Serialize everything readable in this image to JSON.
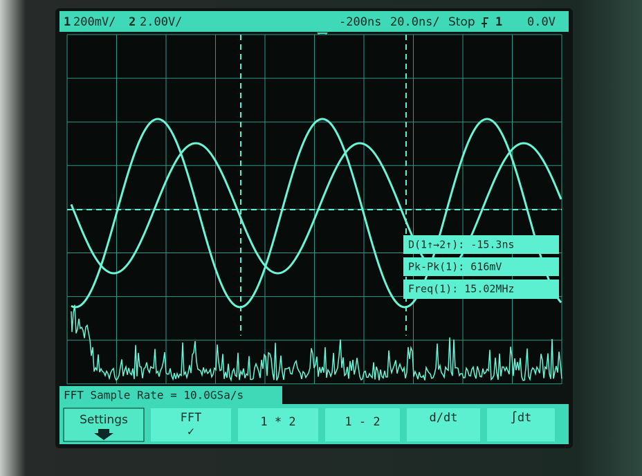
{
  "status_bar": {
    "ch1_number": "1",
    "ch1_scale": "200mV/",
    "ch2_number": "2",
    "ch2_scale": "2.00V/",
    "delay": "-200ns",
    "timebase": "20.0ns/",
    "run_state": "Stop",
    "trigger_source": "1",
    "trigger_level": "0.0V"
  },
  "measurements": [
    "D(1↑→2↑): -15.3ns",
    "Pk-Pk(1): 616mV",
    "Freq(1): 15.02MHz"
  ],
  "message": "FFT Sample Rate = 10.0GSa/s",
  "softkeys": [
    "Settings",
    "FFT",
    "1 * 2",
    "1 - 2",
    "d/dt",
    "∫dt"
  ],
  "fft_checkmark": "✓"
}
